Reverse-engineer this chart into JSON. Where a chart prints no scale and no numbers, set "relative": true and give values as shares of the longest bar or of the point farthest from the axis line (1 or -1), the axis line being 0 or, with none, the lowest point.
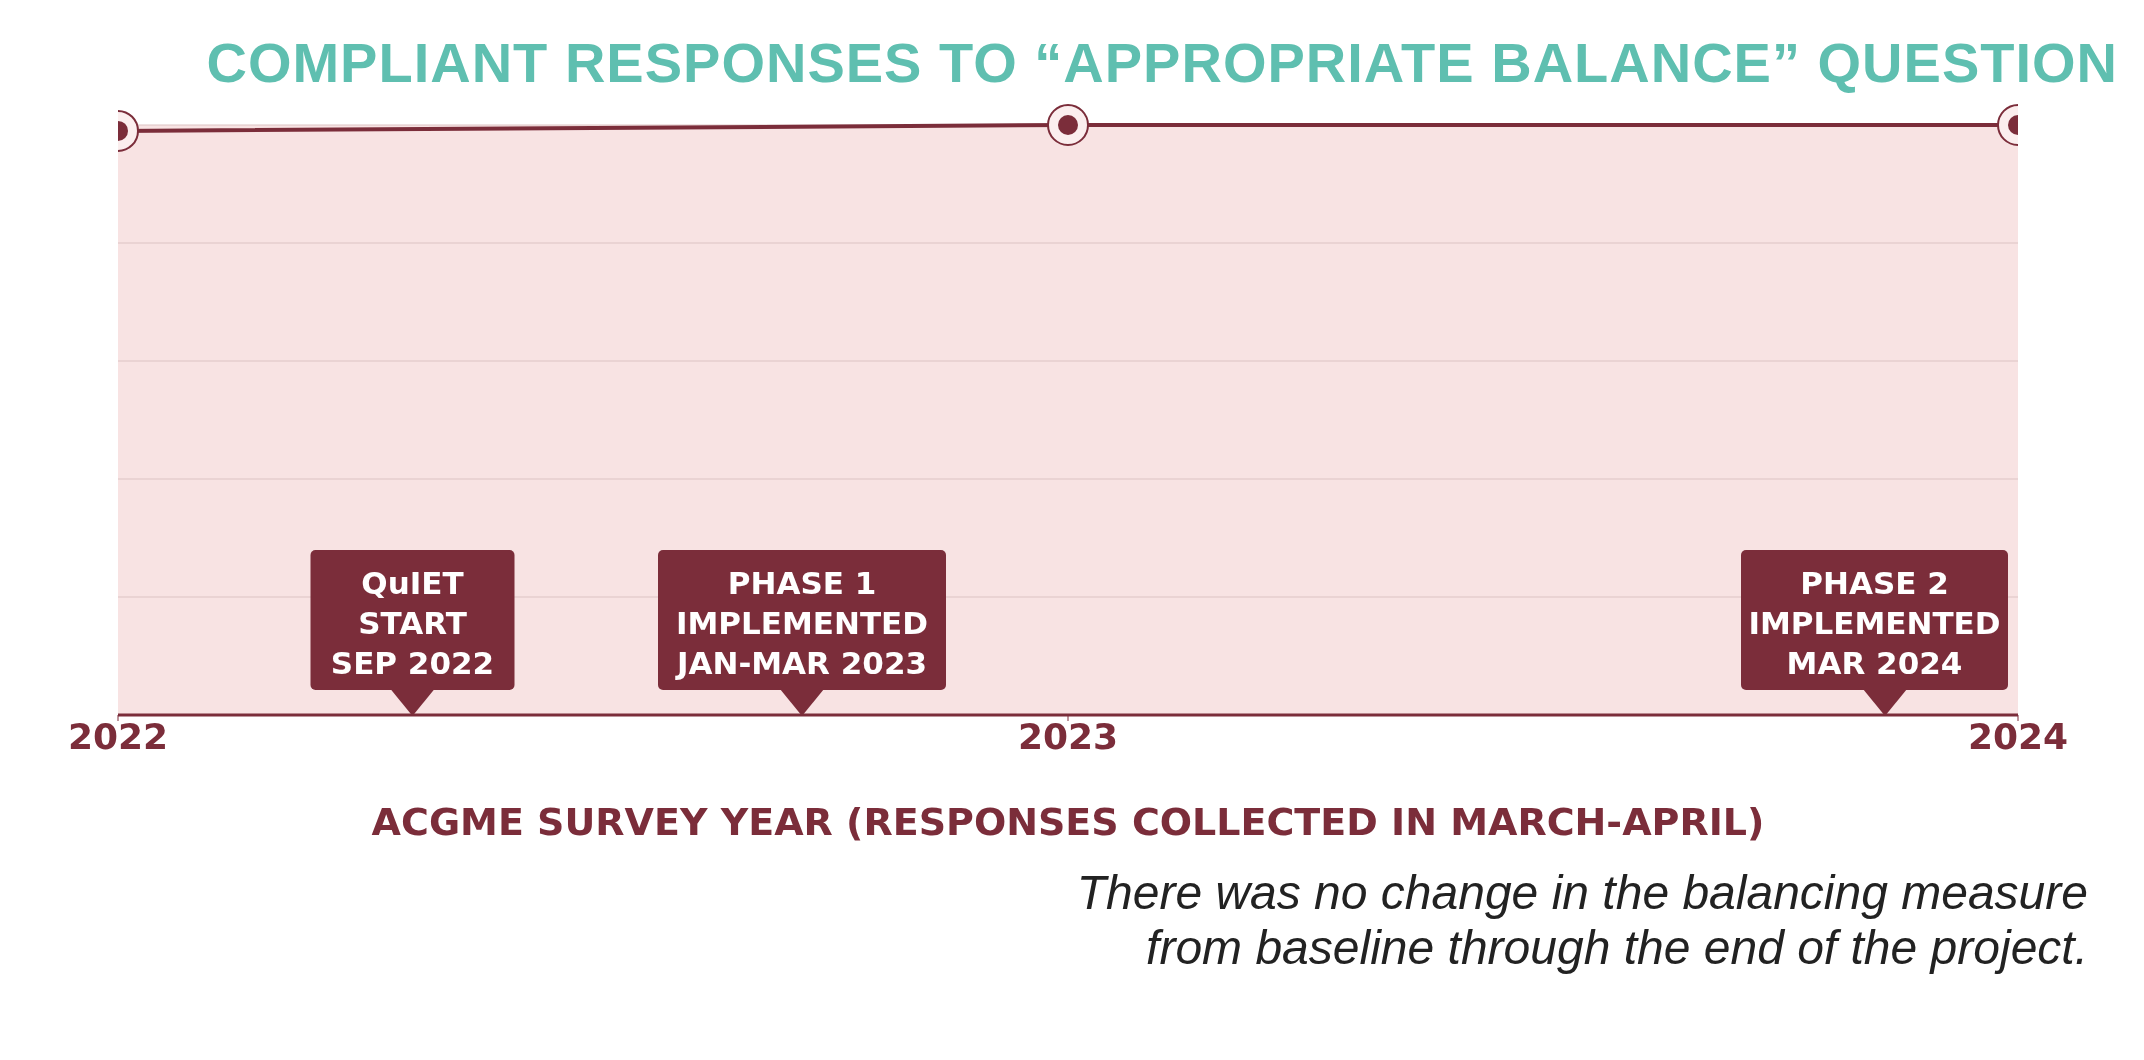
{
  "chart_data": {
    "type": "line",
    "title": "COMPLIANT RESPONSES TO “APPROPRIATE BALANCE” QUESTION",
    "xlabel": "ACGME SURVEY YEAR (RESPONSES COLLECTED IN MARCH-APRIL)",
    "x": [
      2022,
      2023,
      2024
    ],
    "xlim": [
      2022,
      2024
    ],
    "xticks": [
      2022,
      2023,
      2024
    ],
    "relative": true,
    "series": [
      {
        "color": "#7b2d3a",
        "values": [
          0.99,
          1,
          1
        ]
      }
    ],
    "marker": "circle",
    "line_style": "solid",
    "grid": "y",
    "legend": false,
    "annotations": [
      "QuIET\nSTART\nSEP 2022",
      "PHASE 1\nIMPLEMENTED\nJAN-MAR 2023",
      "PHASE 2\nIMPLEMENTED\nMAR 2024",
      "There was no change in the balancing measure from baseline through the end of the project."
    ]
  }
}
